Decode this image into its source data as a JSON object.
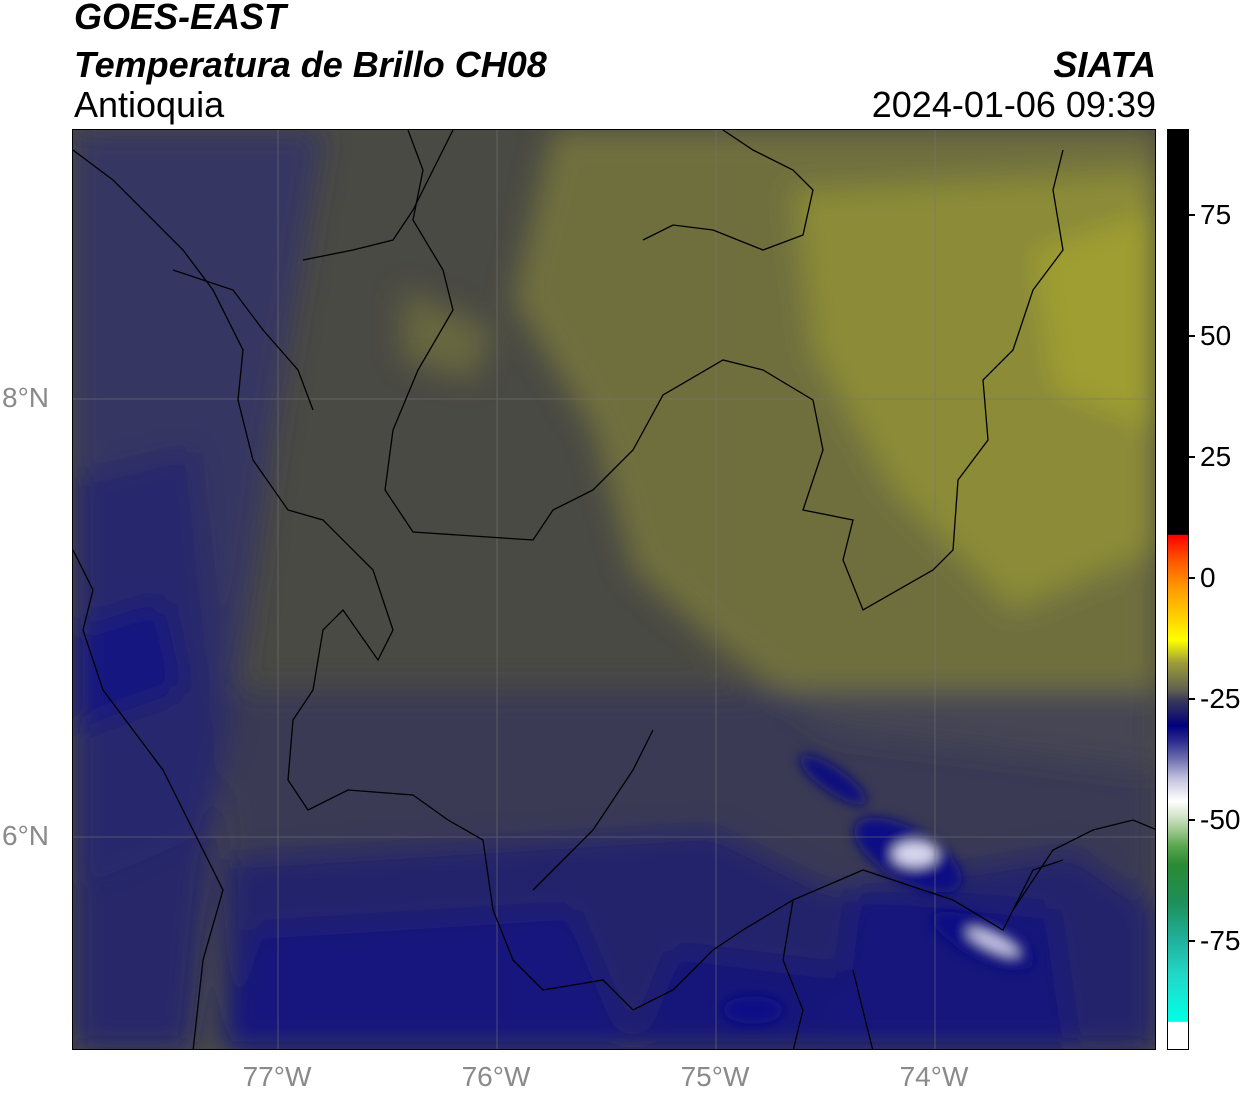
{
  "header": {
    "satellite": "GOES-EAST",
    "product": "Temperatura de Brillo CH08",
    "region": "Antioquia",
    "brand": "SIATA",
    "timestamp": "2024-01-06 09:39"
  },
  "map": {
    "x_ticks": [
      "77°W",
      "76°W",
      "75°W",
      "74°W"
    ],
    "y_ticks": [
      "8°N",
      "6°N"
    ],
    "colors": {
      "warm_olive": "#8f8f37",
      "mid_gray": "#4a4a44",
      "cool_slate": "#3c3c5a",
      "cold_navy": "#1c1c6e",
      "very_cold_blue": "#0a0a85",
      "core_white": "#d8d8f0"
    }
  },
  "colorbar": {
    "labels": [
      "75",
      "50",
      "25",
      "0",
      "-25",
      "-50",
      "-75"
    ]
  }
}
